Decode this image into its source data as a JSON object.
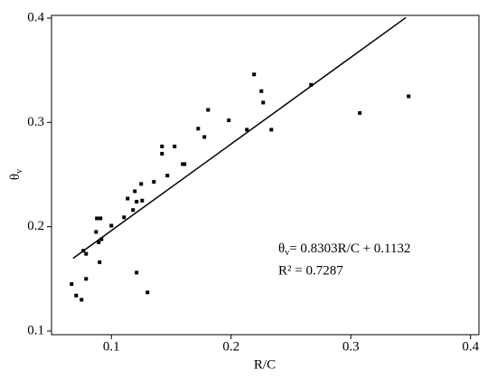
{
  "chart_data": {
    "type": "scatter",
    "x_label": "R/C",
    "y_label": {
      "symbol": "θ",
      "subscript": "v"
    },
    "equation": {
      "symbol": "θ",
      "subscript": "v",
      "rest": "= 0.8303R/C + 0.1132"
    },
    "r_squared": "R² = 0.7287",
    "color": "#000000",
    "xlim": [
      0.05,
      0.407
    ],
    "ylim": [
      0.0965,
      0.4026
    ],
    "xticks": [
      0.1,
      0.2,
      0.3,
      0.4
    ],
    "yticks": [
      0.1,
      0.2,
      0.3,
      0.4
    ],
    "x": [
      0.0668,
      0.0706,
      0.0751,
      0.0766,
      0.0789,
      0.0789,
      0.0872,
      0.0879,
      0.0894,
      0.0902,
      0.0917,
      0.0909,
      0.1,
      0.1106,
      0.1136,
      0.1181,
      0.1196,
      0.1211,
      0.1249,
      0.1257,
      0.1211,
      0.1302,
      0.1355,
      0.1423,
      0.1423,
      0.1468,
      0.1528,
      0.1596,
      0.1611,
      0.1725,
      0.1777,
      0.1808,
      0.1981,
      0.2132,
      0.2192,
      0.2253,
      0.2268,
      0.2336,
      0.2668,
      0.3075,
      0.3483
    ],
    "values": [
      0.145,
      0.134,
      0.13,
      0.177,
      0.174,
      0.15,
      0.195,
      0.208,
      0.185,
      0.166,
      0.188,
      0.208,
      0.201,
      0.209,
      0.227,
      0.216,
      0.234,
      0.224,
      0.241,
      0.225,
      0.156,
      0.137,
      0.243,
      0.277,
      0.27,
      0.249,
      0.277,
      0.26,
      0.26,
      0.294,
      0.286,
      0.312,
      0.302,
      0.293,
      0.346,
      0.33,
      0.319,
      0.293,
      0.336,
      0.309,
      0.325
    ],
    "fit_line": {
      "x": [
        0.068,
        0.346
      ],
      "y": [
        0.1697,
        0.4005
      ]
    }
  }
}
